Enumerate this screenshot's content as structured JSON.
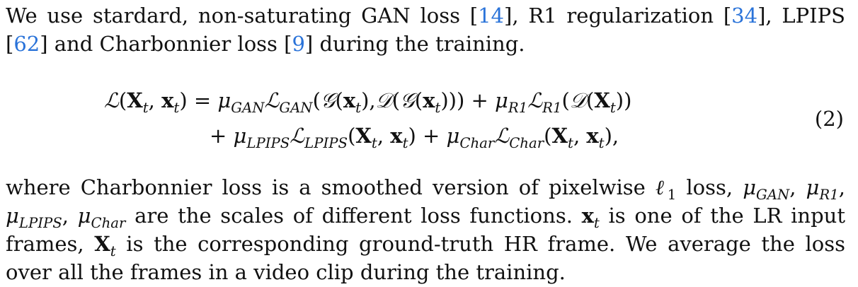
{
  "intro": {
    "text_a": "We use stardard, non-saturating GAN loss [",
    "cite_a": "14",
    "text_b": "], R1 regularization [",
    "cite_b": "34",
    "text_c": "], LPIPS [",
    "cite_c": "62",
    "text_d": "] and Charbonnier loss [",
    "cite_d": "9",
    "text_e": "] during the training."
  },
  "equation": {
    "number": "(2)",
    "line1": {
      "lhs_L": "ℒ",
      "lhs_args_open": "(",
      "X": "X",
      "t": "t",
      "comma": ", ",
      "x": "x",
      "lhs_args_close": ") = ",
      "mu": "μ",
      "gan_sub": "GAN",
      "L": "ℒ",
      "g_open": "(",
      "G": "𝒢",
      "D": "𝒟",
      "mid_text": "),",
      "close_a": "))) + ",
      "r1_sub": "R1",
      "close_b": "))"
    },
    "line2": {
      "plus": "+ ",
      "lpips_sub": "LPIPS",
      "char_sub": "Char",
      "plus_mid": ") + ",
      "end": "),"
    }
  },
  "body": {
    "t1": "where Charbonnier loss is a smoothed version of pixelwise ",
    "ell": "ℓ",
    "one": "1",
    "t2": " loss, ",
    "t3": " are the scales of different loss functions. ",
    "t4": " is one of the LR input frames, ",
    "t5": " is the corresponding ground-truth HR frame. We average the loss over all the frames in a video clip during the training."
  },
  "colors": {
    "citation": "#2a73d9",
    "text": "#111111"
  }
}
